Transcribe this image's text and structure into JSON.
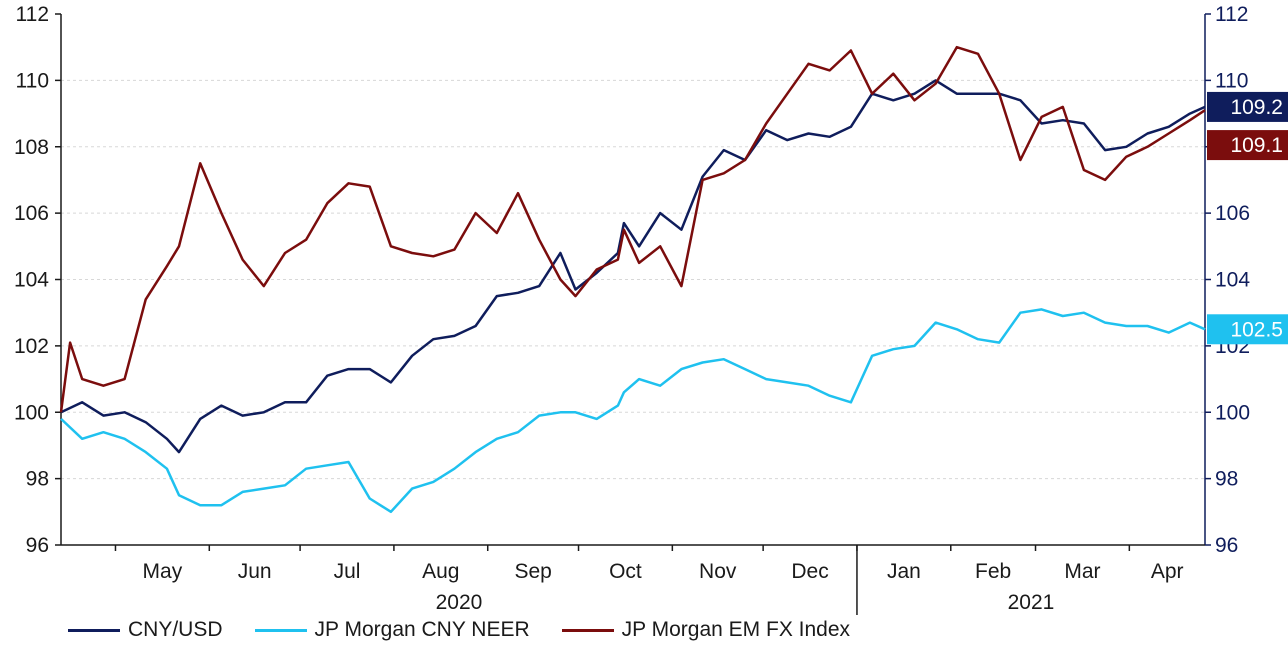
{
  "chart_data": {
    "type": "line",
    "y_left": {
      "min": 96,
      "max": 112,
      "ticks": [
        "96",
        "98",
        "100",
        "102",
        "104",
        "106",
        "108",
        "110",
        "112"
      ]
    },
    "y_right": {
      "min": 96,
      "max": 112,
      "ticks": [
        "96",
        "98",
        "100",
        "102",
        "104",
        "106",
        "108",
        "110",
        "112"
      ]
    },
    "x_months": [
      "May",
      "Jun",
      "Jul",
      "Aug",
      "Sep",
      "Oct",
      "Nov",
      "Dec",
      "Jan",
      "Feb",
      "Mar",
      "Apr"
    ],
    "x_years": [
      "2020",
      "2021"
    ],
    "x_range": [
      "2020-04-13",
      "2021-04-26"
    ],
    "grid": "horizontal-dashed",
    "legend_position": "bottom",
    "end_labels": [
      {
        "text": "109.2",
        "color": "#0f1d5c"
      },
      {
        "text": "109.1",
        "color": "#7b0d0d"
      },
      {
        "text": "102.5",
        "color": "#1fc1ef"
      }
    ],
    "series": [
      {
        "name": "CNY/USD",
        "color": "#0f1d5c",
        "points": [
          [
            "2020-04-13",
            100.0
          ],
          [
            "2020-04-20",
            100.3
          ],
          [
            "2020-04-27",
            99.9
          ],
          [
            "2020-05-04",
            100.0
          ],
          [
            "2020-05-11",
            99.7
          ],
          [
            "2020-05-18",
            99.2
          ],
          [
            "2020-05-22",
            98.8
          ],
          [
            "2020-05-29",
            99.8
          ],
          [
            "2020-06-05",
            100.2
          ],
          [
            "2020-06-12",
            99.9
          ],
          [
            "2020-06-19",
            100.0
          ],
          [
            "2020-06-26",
            100.3
          ],
          [
            "2020-07-03",
            100.3
          ],
          [
            "2020-07-10",
            101.1
          ],
          [
            "2020-07-17",
            101.3
          ],
          [
            "2020-07-24",
            101.3
          ],
          [
            "2020-07-31",
            100.9
          ],
          [
            "2020-08-07",
            101.7
          ],
          [
            "2020-08-14",
            102.2
          ],
          [
            "2020-08-21",
            102.3
          ],
          [
            "2020-08-28",
            102.6
          ],
          [
            "2020-09-04",
            103.5
          ],
          [
            "2020-09-11",
            103.6
          ],
          [
            "2020-09-18",
            103.8
          ],
          [
            "2020-09-25",
            104.8
          ],
          [
            "2020-09-30",
            103.7
          ],
          [
            "2020-10-07",
            104.2
          ],
          [
            "2020-10-14",
            104.8
          ],
          [
            "2020-10-16",
            105.7
          ],
          [
            "2020-10-21",
            105.0
          ],
          [
            "2020-10-28",
            106.0
          ],
          [
            "2020-11-04",
            105.5
          ],
          [
            "2020-11-11",
            107.1
          ],
          [
            "2020-11-18",
            107.9
          ],
          [
            "2020-11-25",
            107.6
          ],
          [
            "2020-12-02",
            108.5
          ],
          [
            "2020-12-09",
            108.2
          ],
          [
            "2020-12-16",
            108.4
          ],
          [
            "2020-12-23",
            108.3
          ],
          [
            "2020-12-30",
            108.6
          ],
          [
            "2021-01-06",
            109.6
          ],
          [
            "2021-01-13",
            109.4
          ],
          [
            "2021-01-20",
            109.6
          ],
          [
            "2021-01-27",
            110.0
          ],
          [
            "2021-02-03",
            109.6
          ],
          [
            "2021-02-10",
            109.6
          ],
          [
            "2021-02-17",
            109.6
          ],
          [
            "2021-02-24",
            109.4
          ],
          [
            "2021-03-03",
            108.7
          ],
          [
            "2021-03-10",
            108.8
          ],
          [
            "2021-03-17",
            108.7
          ],
          [
            "2021-03-24",
            107.9
          ],
          [
            "2021-03-31",
            108.0
          ],
          [
            "2021-04-07",
            108.4
          ],
          [
            "2021-04-14",
            108.6
          ],
          [
            "2021-04-21",
            109.0
          ],
          [
            "2021-04-26",
            109.2
          ]
        ]
      },
      {
        "name": "JP Morgan CNY NEER",
        "color": "#1fc1ef",
        "points": [
          [
            "2020-04-13",
            99.8
          ],
          [
            "2020-04-20",
            99.2
          ],
          [
            "2020-04-27",
            99.4
          ],
          [
            "2020-05-04",
            99.2
          ],
          [
            "2020-05-11",
            98.8
          ],
          [
            "2020-05-18",
            98.3
          ],
          [
            "2020-05-22",
            97.5
          ],
          [
            "2020-05-29",
            97.2
          ],
          [
            "2020-06-05",
            97.2
          ],
          [
            "2020-06-12",
            97.6
          ],
          [
            "2020-06-19",
            97.7
          ],
          [
            "2020-06-26",
            97.8
          ],
          [
            "2020-07-03",
            98.3
          ],
          [
            "2020-07-10",
            98.4
          ],
          [
            "2020-07-17",
            98.5
          ],
          [
            "2020-07-24",
            97.4
          ],
          [
            "2020-07-31",
            97.0
          ],
          [
            "2020-08-07",
            97.7
          ],
          [
            "2020-08-14",
            97.9
          ],
          [
            "2020-08-21",
            98.3
          ],
          [
            "2020-08-28",
            98.8
          ],
          [
            "2020-09-04",
            99.2
          ],
          [
            "2020-09-11",
            99.4
          ],
          [
            "2020-09-18",
            99.9
          ],
          [
            "2020-09-25",
            100.0
          ],
          [
            "2020-09-30",
            100.0
          ],
          [
            "2020-10-07",
            99.8
          ],
          [
            "2020-10-14",
            100.2
          ],
          [
            "2020-10-16",
            100.6
          ],
          [
            "2020-10-21",
            101.0
          ],
          [
            "2020-10-28",
            100.8
          ],
          [
            "2020-11-04",
            101.3
          ],
          [
            "2020-11-11",
            101.5
          ],
          [
            "2020-11-18",
            101.6
          ],
          [
            "2020-11-25",
            101.3
          ],
          [
            "2020-12-02",
            101.0
          ],
          [
            "2020-12-09",
            100.9
          ],
          [
            "2020-12-16",
            100.8
          ],
          [
            "2020-12-23",
            100.5
          ],
          [
            "2020-12-30",
            100.3
          ],
          [
            "2021-01-06",
            101.7
          ],
          [
            "2021-01-13",
            101.9
          ],
          [
            "2021-01-20",
            102.0
          ],
          [
            "2021-01-27",
            102.7
          ],
          [
            "2021-02-03",
            102.5
          ],
          [
            "2021-02-10",
            102.2
          ],
          [
            "2021-02-17",
            102.1
          ],
          [
            "2021-02-24",
            103.0
          ],
          [
            "2021-03-03",
            103.1
          ],
          [
            "2021-03-10",
            102.9
          ],
          [
            "2021-03-17",
            103.0
          ],
          [
            "2021-03-24",
            102.7
          ],
          [
            "2021-03-31",
            102.6
          ],
          [
            "2021-04-07",
            102.6
          ],
          [
            "2021-04-14",
            102.4
          ],
          [
            "2021-04-21",
            102.7
          ],
          [
            "2021-04-26",
            102.5
          ]
        ]
      },
      {
        "name": "JP Morgan EM FX Index",
        "color": "#7b0d0d",
        "points": [
          [
            "2020-04-13",
            100.0
          ],
          [
            "2020-04-16",
            102.1
          ],
          [
            "2020-04-20",
            101.0
          ],
          [
            "2020-04-27",
            100.8
          ],
          [
            "2020-05-04",
            101.0
          ],
          [
            "2020-05-11",
            103.4
          ],
          [
            "2020-05-18",
            104.4
          ],
          [
            "2020-05-22",
            105.0
          ],
          [
            "2020-05-29",
            107.5
          ],
          [
            "2020-06-05",
            106.0
          ],
          [
            "2020-06-12",
            104.6
          ],
          [
            "2020-06-19",
            103.8
          ],
          [
            "2020-06-26",
            104.8
          ],
          [
            "2020-07-03",
            105.2
          ],
          [
            "2020-07-10",
            106.3
          ],
          [
            "2020-07-17",
            106.9
          ],
          [
            "2020-07-24",
            106.8
          ],
          [
            "2020-07-31",
            105.0
          ],
          [
            "2020-08-07",
            104.8
          ],
          [
            "2020-08-14",
            104.7
          ],
          [
            "2020-08-21",
            104.9
          ],
          [
            "2020-08-28",
            106.0
          ],
          [
            "2020-09-04",
            105.4
          ],
          [
            "2020-09-11",
            106.6
          ],
          [
            "2020-09-18",
            105.2
          ],
          [
            "2020-09-25",
            104.0
          ],
          [
            "2020-09-30",
            103.5
          ],
          [
            "2020-10-07",
            104.3
          ],
          [
            "2020-10-14",
            104.6
          ],
          [
            "2020-10-16",
            105.5
          ],
          [
            "2020-10-21",
            104.5
          ],
          [
            "2020-10-28",
            105.0
          ],
          [
            "2020-11-04",
            103.8
          ],
          [
            "2020-11-11",
            107.0
          ],
          [
            "2020-11-18",
            107.2
          ],
          [
            "2020-11-25",
            107.6
          ],
          [
            "2020-12-02",
            108.7
          ],
          [
            "2020-12-09",
            109.6
          ],
          [
            "2020-12-16",
            110.5
          ],
          [
            "2020-12-23",
            110.3
          ],
          [
            "2020-12-30",
            110.9
          ],
          [
            "2021-01-06",
            109.6
          ],
          [
            "2021-01-13",
            110.2
          ],
          [
            "2021-01-20",
            109.4
          ],
          [
            "2021-01-27",
            109.9
          ],
          [
            "2021-02-03",
            111.0
          ],
          [
            "2021-02-10",
            110.8
          ],
          [
            "2021-02-17",
            109.6
          ],
          [
            "2021-02-24",
            107.6
          ],
          [
            "2021-03-03",
            108.9
          ],
          [
            "2021-03-10",
            109.2
          ],
          [
            "2021-03-17",
            107.3
          ],
          [
            "2021-03-24",
            107.0
          ],
          [
            "2021-03-31",
            107.7
          ],
          [
            "2021-04-07",
            108.0
          ],
          [
            "2021-04-14",
            108.4
          ],
          [
            "2021-04-21",
            108.8
          ],
          [
            "2021-04-26",
            109.1
          ]
        ]
      }
    ]
  }
}
